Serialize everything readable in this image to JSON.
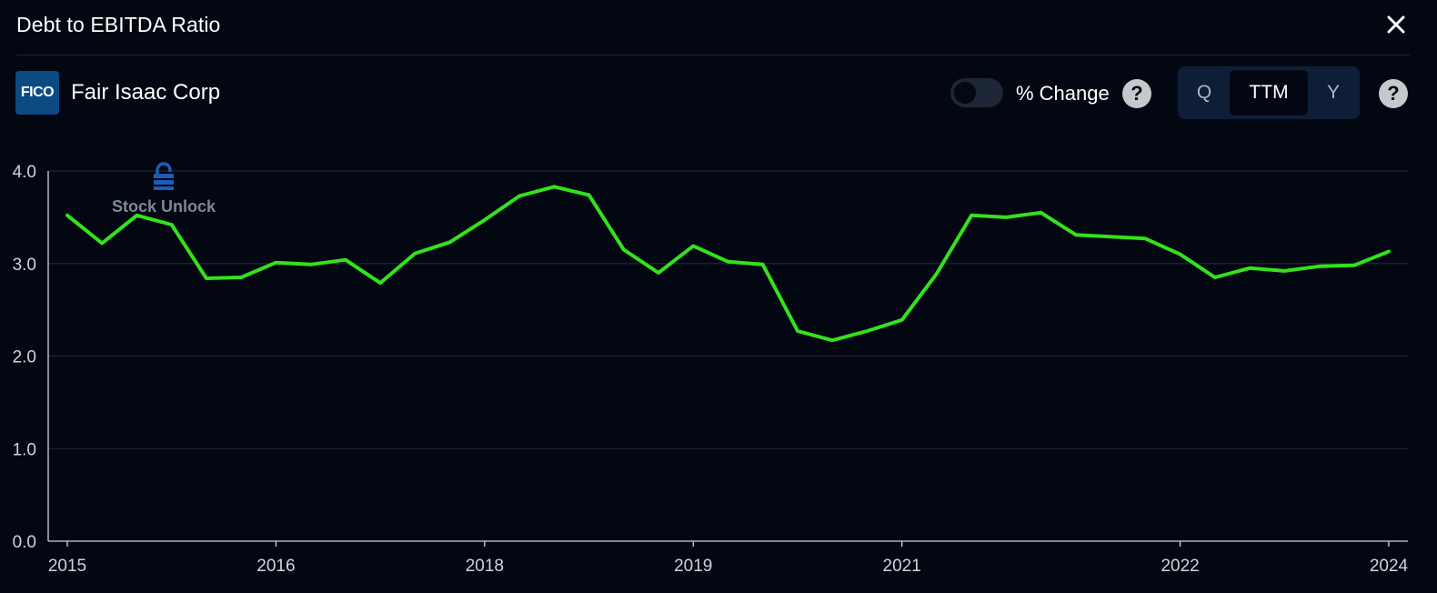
{
  "header": {
    "title": "Debt to EBITDA Ratio"
  },
  "company": {
    "logo_text": "FICO",
    "name": "Fair Isaac Corp"
  },
  "controls": {
    "pct_change_label": "% Change",
    "help_symbol": "?",
    "periods": {
      "q": "Q",
      "ttm": "TTM",
      "y": "Y"
    },
    "selected_period": "TTM"
  },
  "watermark": {
    "text": "Stock Unlock"
  },
  "colors": {
    "background": "#020712",
    "line": "#33e21a",
    "grid": "#1c2533",
    "axis_text": "#cfd4dc"
  },
  "chart_data": {
    "type": "line",
    "title": "Debt to EBITDA Ratio",
    "xlabel": "",
    "ylabel": "",
    "ylim": [
      0,
      4
    ],
    "yticks": [
      0.0,
      1.0,
      2.0,
      3.0,
      4.0
    ],
    "ytick_labels": [
      "0.0",
      "1.0",
      "2.0",
      "3.0",
      "4.0"
    ],
    "xlim": [
      0,
      38
    ],
    "xticks": [
      0,
      6,
      12,
      18,
      24,
      32,
      38
    ],
    "xtick_labels": [
      "2015",
      "2016",
      "2018",
      "2019",
      "2021",
      "2022",
      "2024"
    ],
    "grid": true,
    "legend": "none",
    "series": [
      {
        "x": [
          0,
          1,
          2,
          3,
          4,
          5,
          6,
          7,
          8,
          9,
          10,
          11,
          12,
          13,
          14,
          15,
          16,
          17,
          18,
          19,
          20,
          21,
          22,
          23,
          24,
          25,
          26,
          27,
          28,
          29,
          30,
          31,
          32,
          33,
          34,
          35,
          36,
          37,
          38
        ],
        "values": [
          3.52,
          3.22,
          3.52,
          3.42,
          2.84,
          2.85,
          3.01,
          2.99,
          3.04,
          2.79,
          3.11,
          3.23,
          3.47,
          3.73,
          3.83,
          3.74,
          3.15,
          2.9,
          3.19,
          3.02,
          2.99,
          2.27,
          2.17,
          2.27,
          2.39,
          2.89,
          3.52,
          3.5,
          3.55,
          3.31,
          3.29,
          3.27,
          3.1,
          2.85,
          2.95,
          2.92,
          2.97,
          2.98,
          3.13
        ]
      }
    ]
  }
}
